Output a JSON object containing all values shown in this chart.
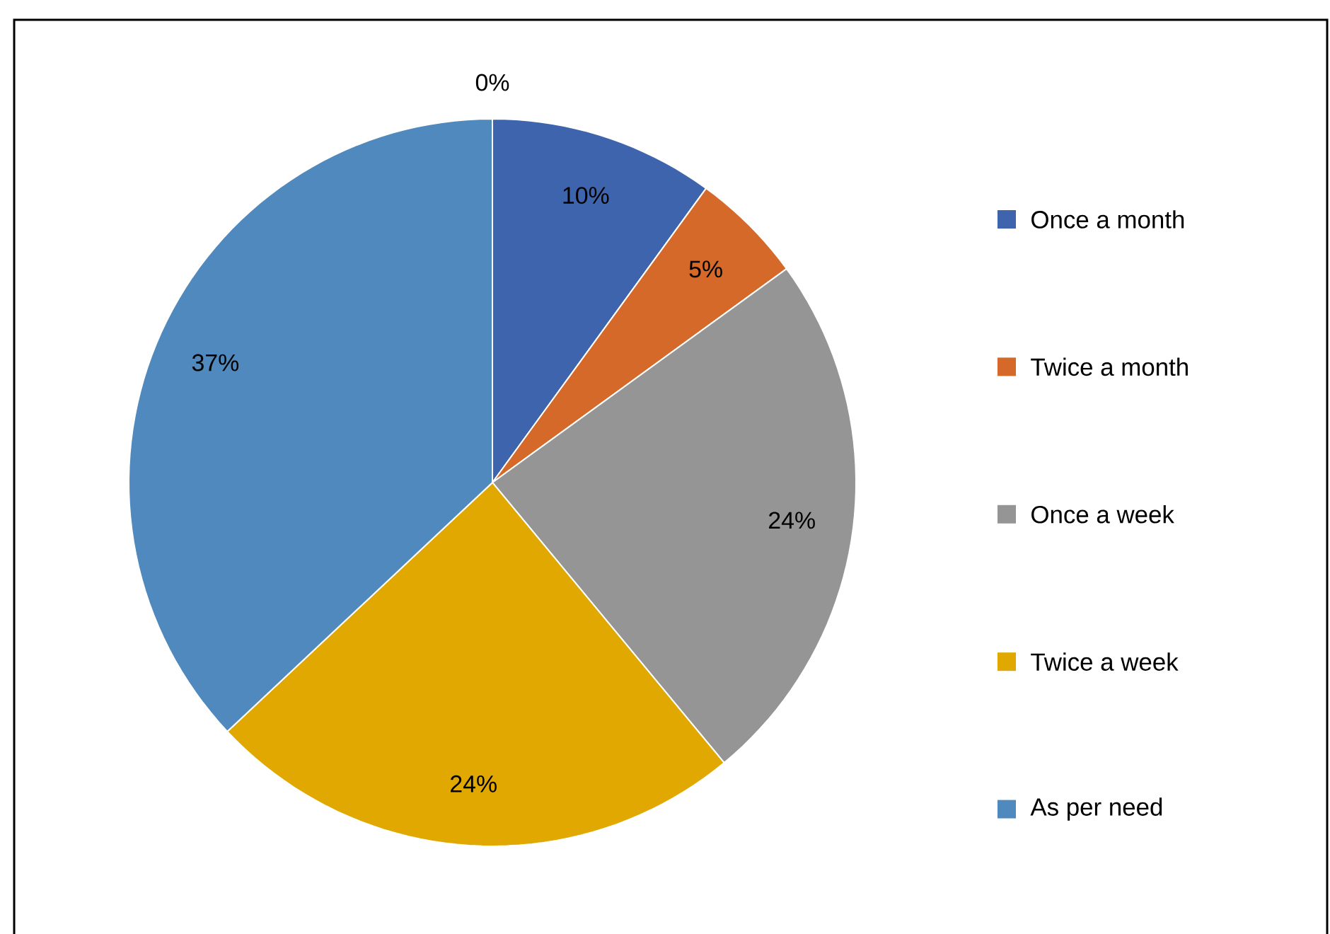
{
  "chart_data": {
    "type": "pie",
    "categories": [
      "Once a month",
      "Twice a month",
      "Once a week",
      "Twice a week",
      "As per need",
      null
    ],
    "values": [
      10,
      5,
      24,
      24,
      37,
      0
    ],
    "value_labels": [
      "10%",
      "5%",
      "24%",
      "24%",
      "37%",
      "0%"
    ],
    "colors": [
      "#3f64ae",
      "#d4692a",
      "#959595",
      "#e0a800",
      "#4f89bd",
      "#7030a0"
    ],
    "legend": "right"
  }
}
